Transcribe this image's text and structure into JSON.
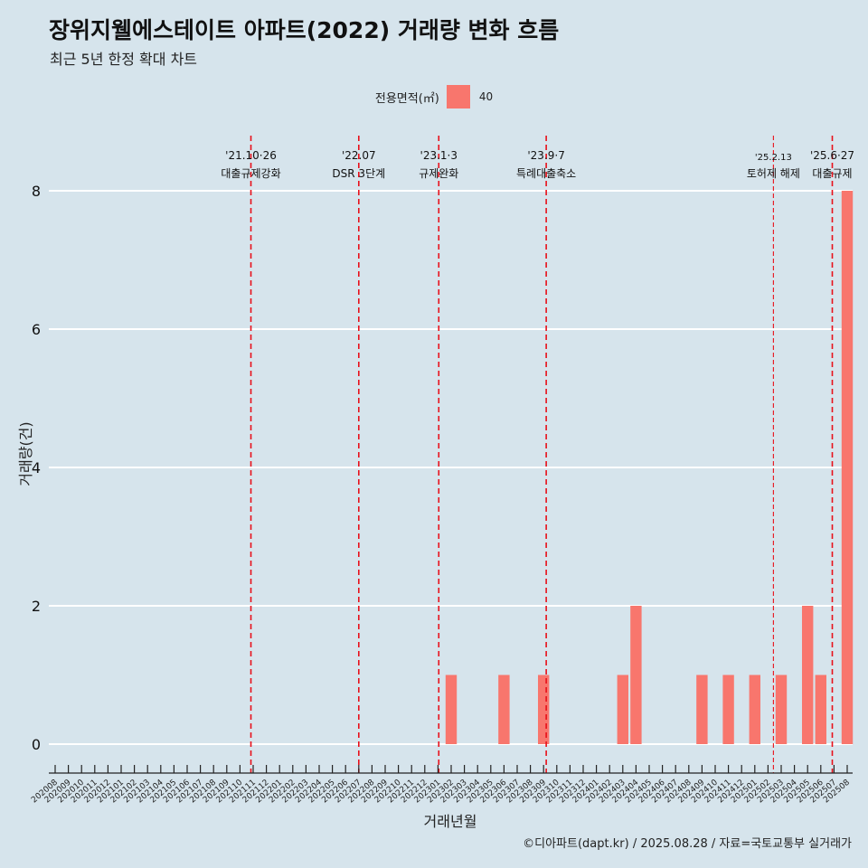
{
  "chart_data": {
    "type": "bar",
    "title": "장위지웰에스테이트 아파트(2022) 거래량 변화 흐름",
    "subtitle": "최근 5년 한정 확대 차트",
    "xlabel": "거래년월",
    "ylabel": "거래량(건)",
    "caption": "©디아파트(dapt.kr) / 2025.08.28 / 자료=국토교통부 실거래가",
    "legend_title": "전용면적(㎡)",
    "legend_entries": [
      "40"
    ],
    "ylim": [
      0,
      8
    ],
    "yticks": [
      0,
      2,
      4,
      6,
      8
    ],
    "categories": [
      "202008",
      "202009",
      "202010",
      "202011",
      "202012",
      "202101",
      "202102",
      "202103",
      "202104",
      "202105",
      "202106",
      "202107",
      "202108",
      "202109",
      "202110",
      "202111",
      "202112",
      "202201",
      "202202",
      "202203",
      "202204",
      "202205",
      "202206",
      "202207",
      "202208",
      "202209",
      "202210",
      "202211",
      "202212",
      "202301",
      "202302",
      "202303",
      "202304",
      "202305",
      "202306",
      "202307",
      "202308",
      "202309",
      "202310",
      "202311",
      "202312",
      "202401",
      "202402",
      "202403",
      "202404",
      "202405",
      "202406",
      "202407",
      "202408",
      "202409",
      "202410",
      "202411",
      "202412",
      "202501",
      "202502",
      "202503",
      "202504",
      "202505",
      "202506",
      "202507",
      "202508"
    ],
    "series": [
      {
        "name": "40",
        "color": "#f8766d",
        "values": [
          0,
          0,
          0,
          0,
          0,
          0,
          0,
          0,
          0,
          0,
          0,
          0,
          0,
          0,
          0,
          0,
          0,
          0,
          0,
          0,
          0,
          0,
          0,
          0,
          0,
          0,
          0,
          0,
          0,
          0,
          1,
          0,
          0,
          0,
          1,
          0,
          0,
          1,
          0,
          0,
          0,
          0,
          0,
          1,
          2,
          0,
          0,
          0,
          0,
          1,
          0,
          1,
          0,
          1,
          0,
          1,
          0,
          2,
          1,
          0,
          8
        ]
      }
    ],
    "annotations": [
      {
        "date": "'21.10·26",
        "label": "대출규제강화",
        "month": "202110",
        "offset": 0.83,
        "style": "major"
      },
      {
        "date": "'22.07",
        "label": "DSR 3단계",
        "month": "202207",
        "offset": 0.0,
        "style": "major"
      },
      {
        "date": "'23.1·3",
        "label": "규제완화",
        "month": "202301",
        "offset": 0.06,
        "style": "major"
      },
      {
        "date": "'23.9·7",
        "label": "특례대출축소",
        "month": "202309",
        "offset": 0.2,
        "style": "major"
      },
      {
        "date": "'25.2.13",
        "label": "토허제 해제",
        "month": "202502",
        "offset": 0.41,
        "style": "minor"
      },
      {
        "date": "'25.6·27",
        "label": "대출규제",
        "month": "202506",
        "offset": 0.87,
        "style": "major"
      }
    ]
  }
}
